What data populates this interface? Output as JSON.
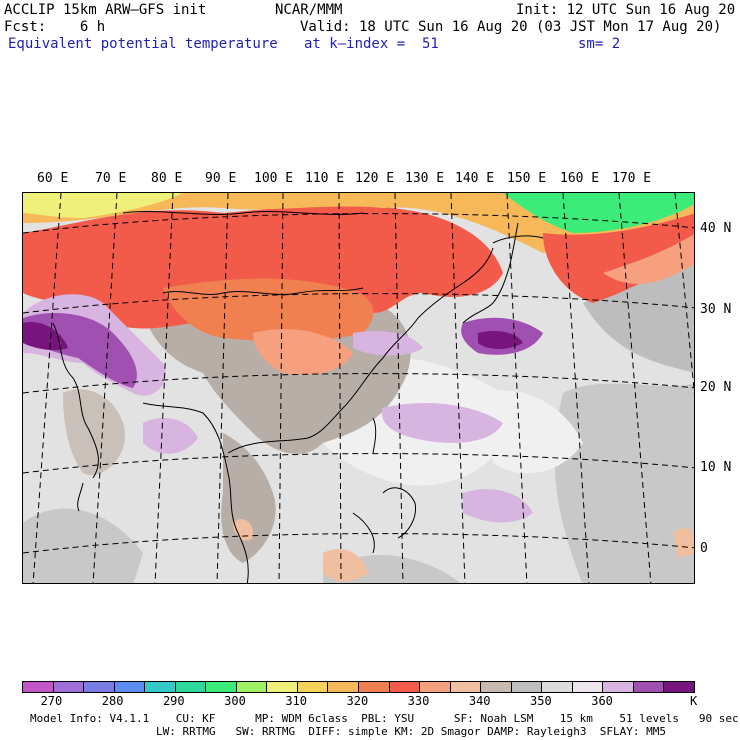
{
  "header": {
    "line1_left": "ACCLIP 15km ARW–GFS init",
    "line1_center": "NCAR/MMM",
    "line1_right": "Init: 12 UTC Sun 16 Aug 20",
    "line2_left": "Fcst:    6 h",
    "line2_right": "Valid: 18 UTC Sun 16 Aug 20 (03 JST Mon 17 Aug 20)",
    "line3_left": "Equivalent potential temperature",
    "line3_center": "at k–index =  51",
    "line3_right": "sm= 2"
  },
  "map": {
    "lon_labels": [
      "60 E",
      "70 E",
      "80 E",
      "90 E",
      "100 E",
      "110 E",
      "120 E",
      "130 E",
      "140 E",
      "150 E",
      "160 E",
      "170 E"
    ],
    "lat_labels": [
      "40 N",
      "30 N",
      "20 N",
      "10 N",
      "0"
    ]
  },
  "colorbar": {
    "colors": [
      "#c355c8",
      "#9f6ed8",
      "#7b7be6",
      "#5b8ef0",
      "#35c8c8",
      "#30d79b",
      "#3cec78",
      "#a0f064",
      "#eef07a",
      "#f7d25a",
      "#f7b85a",
      "#f08050",
      "#f25a4a",
      "#f7a080",
      "#f0bfa0",
      "#c8b8b0",
      "#bebebe",
      "#dcdcdc",
      "#ece6ec",
      "#d8b4e0",
      "#a050b0",
      "#78147d"
    ],
    "tick_labels": [
      "270",
      "280",
      "290",
      "300",
      "310",
      "320",
      "330",
      "340",
      "350",
      "360"
    ],
    "unit": "K"
  },
  "footer": {
    "line1": "Model Info: V4.1.1    CU: KF      MP: WDM 6class  PBL: YSU      SF: Noah LSM    15 km    51 levels   90 sec",
    "line2": "LW: RRTMG   SW: RRTMG  DIFF: simple KM: 2D Smagor DAMP: Rayleigh3  SFLAY: MM5"
  }
}
